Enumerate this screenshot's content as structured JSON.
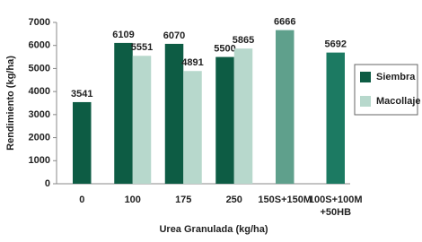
{
  "chart_data": {
    "type": "bar",
    "y_label": "Rendimiento (kg/ha)",
    "x_label": "Urea Granulada (kg/ha)",
    "categories": [
      "0",
      "100",
      "175",
      "250",
      "150S+150M",
      [
        "100S+100M",
        "+50HB"
      ]
    ],
    "series": [
      {
        "name": "Siembra",
        "color": "#0d5c44",
        "values": [
          3541,
          6109,
          6070,
          5500,
          null,
          null
        ]
      },
      {
        "name": "Macollaje",
        "color": "#b7d8cc",
        "values": [
          null,
          5551,
          4891,
          5865,
          null,
          null
        ]
      },
      {
        "colors": [
          null,
          null,
          null,
          null,
          "#5fa08c",
          "#1c7a62"
        ],
        "values": [
          null,
          null,
          null,
          null,
          6666,
          5692
        ]
      }
    ],
    "ylim": [
      0,
      7000
    ],
    "yticks": [
      0,
      1000,
      2000,
      3000,
      4000,
      5000,
      6000,
      7000
    ],
    "legend": "right"
  }
}
